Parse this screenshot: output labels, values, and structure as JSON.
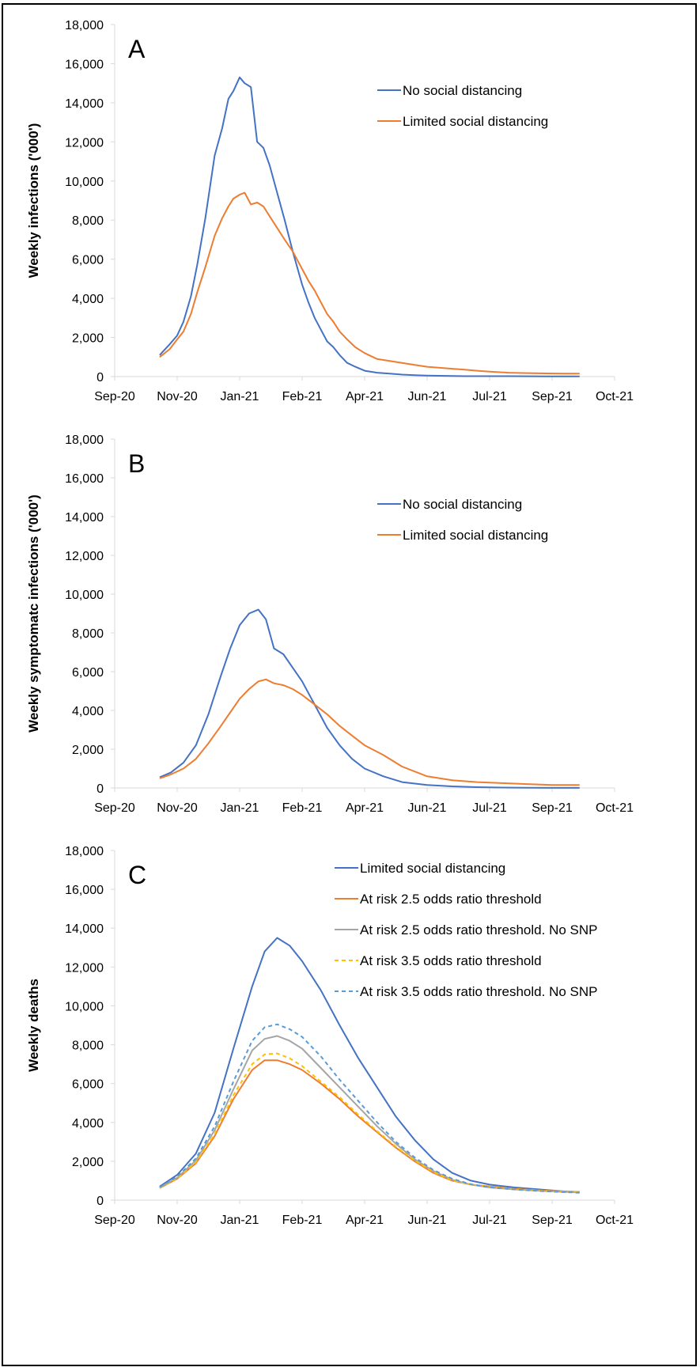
{
  "chart_data": [
    {
      "type": "line",
      "panel_label": "A",
      "ylabel": "Weekly infections ('000')",
      "xlabel": "",
      "ylim": [
        0,
        18000
      ],
      "yticks": [
        "0",
        "2,000",
        "4,000",
        "6,000",
        "8,000",
        "10,000",
        "12,000",
        "14,000",
        "16,000",
        "18,000"
      ],
      "yticks_values": [
        0,
        2000,
        4000,
        6000,
        8000,
        10000,
        12000,
        14000,
        16000,
        18000
      ],
      "xticks": [
        "Sep-20",
        "Nov-20",
        "Jan-21",
        "Feb-21",
        "Apr-21",
        "Jun-21",
        "Jul-21",
        "Sep-21",
        "Oct-21"
      ],
      "xlim": [
        0,
        8
      ],
      "grid": false,
      "legend_position": "top-right",
      "series": [
        {
          "name": "No social distancing",
          "color": "#4472C4",
          "dash": "",
          "x": [
            0.72,
            0.88,
            1.0,
            1.1,
            1.22,
            1.32,
            1.45,
            1.6,
            1.72,
            1.82,
            1.9,
            2.0,
            2.08,
            2.18,
            2.28,
            2.38,
            2.48,
            2.6,
            2.72,
            2.85,
            3.0,
            3.1,
            3.2,
            3.3,
            3.4,
            3.5,
            3.6,
            3.72,
            3.85,
            4.0,
            4.2,
            4.4,
            4.6,
            4.8,
            5.0,
            5.2,
            5.4,
            5.6,
            5.8,
            6.0,
            6.3,
            6.6,
            6.9,
            7.2,
            7.44
          ],
          "values": [
            1100,
            1650,
            2100,
            2800,
            4100,
            5700,
            8100,
            11300,
            12700,
            14200,
            14600,
            15300,
            15000,
            14800,
            12000,
            11700,
            10800,
            9400,
            8000,
            6400,
            4700,
            3800,
            3000,
            2400,
            1800,
            1500,
            1100,
            700,
            500,
            300,
            200,
            150,
            100,
            70,
            50,
            40,
            30,
            20,
            20,
            20,
            20,
            15,
            10,
            10,
            10
          ]
        },
        {
          "name": "Limited social distancing",
          "color": "#ED7D31",
          "dash": "",
          "x": [
            0.72,
            0.88,
            1.0,
            1.1,
            1.22,
            1.32,
            1.45,
            1.6,
            1.72,
            1.82,
            1.9,
            2.0,
            2.08,
            2.18,
            2.28,
            2.38,
            2.48,
            2.6,
            2.72,
            2.85,
            3.0,
            3.1,
            3.2,
            3.3,
            3.4,
            3.5,
            3.6,
            3.72,
            3.85,
            4.0,
            4.2,
            4.4,
            4.6,
            4.8,
            5.0,
            5.2,
            5.4,
            5.6,
            5.8,
            6.0,
            6.3,
            6.6,
            6.9,
            7.2,
            7.44
          ],
          "values": [
            1000,
            1400,
            1900,
            2300,
            3200,
            4300,
            5600,
            7200,
            8100,
            8700,
            9100,
            9300,
            9400,
            8800,
            8900,
            8700,
            8200,
            7600,
            7000,
            6400,
            5500,
            4900,
            4400,
            3800,
            3200,
            2800,
            2300,
            1900,
            1500,
            1200,
            900,
            800,
            700,
            600,
            500,
            450,
            400,
            350,
            300,
            250,
            200,
            180,
            160,
            150,
            150
          ]
        }
      ]
    },
    {
      "type": "line",
      "panel_label": "B",
      "ylabel": "Weekly symptomatc infections ('000')",
      "xlabel": "",
      "ylim": [
        0,
        18000
      ],
      "yticks": [
        "0",
        "2,000",
        "4,000",
        "6,000",
        "8,000",
        "10,000",
        "12,000",
        "14,000",
        "16,000",
        "18,000"
      ],
      "yticks_values": [
        0,
        2000,
        4000,
        6000,
        8000,
        10000,
        12000,
        14000,
        16000,
        18000
      ],
      "xticks": [
        "Sep-20",
        "Nov-20",
        "Jan-21",
        "Feb-21",
        "Apr-21",
        "Jun-21",
        "Jul-21",
        "Sep-21",
        "Oct-21"
      ],
      "xlim": [
        0,
        8
      ],
      "grid": false,
      "legend_position": "top-right",
      "series": [
        {
          "name": "No social distancing",
          "color": "#4472C4",
          "dash": "",
          "x": [
            0.72,
            0.9,
            1.1,
            1.3,
            1.5,
            1.7,
            1.85,
            2.0,
            2.15,
            2.3,
            2.42,
            2.55,
            2.7,
            2.85,
            3.0,
            3.2,
            3.4,
            3.6,
            3.8,
            4.0,
            4.3,
            4.6,
            5.0,
            5.4,
            5.8,
            6.2,
            6.6,
            7.0,
            7.44
          ],
          "values": [
            550,
            800,
            1300,
            2200,
            3800,
            5800,
            7200,
            8400,
            9000,
            9200,
            8700,
            7200,
            6900,
            6200,
            5500,
            4300,
            3100,
            2200,
            1500,
            1000,
            600,
            300,
            150,
            80,
            40,
            20,
            10,
            5,
            5
          ]
        },
        {
          "name": "Limited social distancing",
          "color": "#ED7D31",
          "dash": "",
          "x": [
            0.72,
            0.9,
            1.1,
            1.3,
            1.5,
            1.7,
            1.85,
            2.0,
            2.15,
            2.3,
            2.42,
            2.55,
            2.7,
            2.85,
            3.0,
            3.2,
            3.4,
            3.6,
            3.8,
            4.0,
            4.3,
            4.6,
            5.0,
            5.4,
            5.8,
            6.2,
            6.6,
            7.0,
            7.44
          ],
          "values": [
            500,
            700,
            1000,
            1500,
            2300,
            3200,
            3900,
            4600,
            5100,
            5500,
            5600,
            5400,
            5300,
            5100,
            4800,
            4300,
            3800,
            3200,
            2700,
            2200,
            1700,
            1100,
            600,
            400,
            300,
            250,
            200,
            150,
            150
          ]
        }
      ]
    },
    {
      "type": "line",
      "panel_label": "C",
      "ylabel": "Weekly deaths",
      "xlabel": "",
      "ylim": [
        0,
        18000
      ],
      "yticks": [
        "0",
        "2,000",
        "4,000",
        "6,000",
        "8,000",
        "10,000",
        "12,000",
        "14,000",
        "16,000",
        "18,000"
      ],
      "yticks_values": [
        0,
        2000,
        4000,
        6000,
        8000,
        10000,
        12000,
        14000,
        16000,
        18000
      ],
      "xticks": [
        "Sep-20",
        "Nov-20",
        "Jan-21",
        "Feb-21",
        "Apr-21",
        "Jun-21",
        "Jul-21",
        "Sep-21",
        "Oct-21"
      ],
      "xlim": [
        0,
        8
      ],
      "grid": false,
      "legend_position": "top-right",
      "series": [
        {
          "name": "Limited social distancing",
          "color": "#4472C4",
          "dash": "",
          "x": [
            0.72,
            1.0,
            1.3,
            1.6,
            1.9,
            2.2,
            2.4,
            2.6,
            2.8,
            3.0,
            3.3,
            3.6,
            3.9,
            4.2,
            4.5,
            4.8,
            5.1,
            5.4,
            5.7,
            6.0,
            6.4,
            6.8,
            7.2,
            7.44
          ],
          "values": [
            700,
            1300,
            2400,
            4500,
            7800,
            11000,
            12800,
            13500,
            13100,
            12300,
            10800,
            9000,
            7300,
            5800,
            4300,
            3100,
            2100,
            1400,
            1000,
            800,
            650,
            550,
            450,
            420
          ]
        },
        {
          "name": "At risk 2.5 odds ratio threshold",
          "color": "#ED7D31",
          "dash": "",
          "x": [
            0.72,
            1.0,
            1.3,
            1.6,
            1.9,
            2.2,
            2.4,
            2.6,
            2.8,
            3.0,
            3.3,
            3.6,
            3.9,
            4.2,
            4.5,
            4.8,
            5.1,
            5.4,
            5.7,
            6.0,
            6.4,
            6.8,
            7.2,
            7.44
          ],
          "values": [
            620,
            1100,
            1900,
            3300,
            5200,
            6700,
            7200,
            7200,
            7000,
            6700,
            6000,
            5200,
            4300,
            3500,
            2700,
            2000,
            1400,
            1000,
            800,
            700,
            580,
            500,
            450,
            420
          ]
        },
        {
          "name": "At risk 2.5 odds ratio threshold. No SNP",
          "color": "#A5A5A5",
          "dash": "",
          "x": [
            0.72,
            1.0,
            1.3,
            1.6,
            1.9,
            2.2,
            2.4,
            2.6,
            2.8,
            3.0,
            3.3,
            3.6,
            3.9,
            4.2,
            4.5,
            4.8,
            5.1,
            5.4,
            5.7,
            6.0,
            6.4,
            6.8,
            7.2,
            7.44
          ],
          "values": [
            650,
            1150,
            2050,
            3600,
            5700,
            7700,
            8300,
            8450,
            8200,
            7800,
            6800,
            5800,
            4800,
            3800,
            2900,
            2100,
            1500,
            1050,
            800,
            650,
            550,
            480,
            420,
            400
          ]
        },
        {
          "name": "At risk 3.5 odds ratio threshold",
          "color": "#FFC000",
          "dash": "5,4",
          "x": [
            0.72,
            1.0,
            1.3,
            1.6,
            1.9,
            2.2,
            2.4,
            2.6,
            2.8,
            3.0,
            3.3,
            3.6,
            3.9,
            4.2,
            4.5,
            4.8,
            5.1,
            5.4,
            5.7,
            6.0,
            6.4,
            6.8,
            7.2,
            7.44
          ],
          "values": [
            630,
            1120,
            1950,
            3400,
            5400,
            7000,
            7500,
            7550,
            7300,
            6900,
            6100,
            5300,
            4400,
            3550,
            2750,
            2050,
            1450,
            1020,
            800,
            680,
            570,
            490,
            430,
            400
          ]
        },
        {
          "name": "At risk 3.5 odds ratio threshold. No SNP",
          "color": "#5B9BD5",
          "dash": "5,4",
          "x": [
            0.72,
            1.0,
            1.3,
            1.6,
            1.9,
            2.2,
            2.4,
            2.6,
            2.8,
            3.0,
            3.3,
            3.6,
            3.9,
            4.2,
            4.5,
            4.8,
            5.1,
            5.4,
            5.7,
            6.0,
            6.4,
            6.8,
            7.2,
            7.44
          ],
          "values": [
            660,
            1200,
            2150,
            3800,
            6100,
            8200,
            8900,
            9050,
            8800,
            8400,
            7400,
            6200,
            5100,
            4000,
            3000,
            2200,
            1550,
            1100,
            820,
            660,
            550,
            470,
            410,
            380
          ]
        }
      ]
    }
  ]
}
